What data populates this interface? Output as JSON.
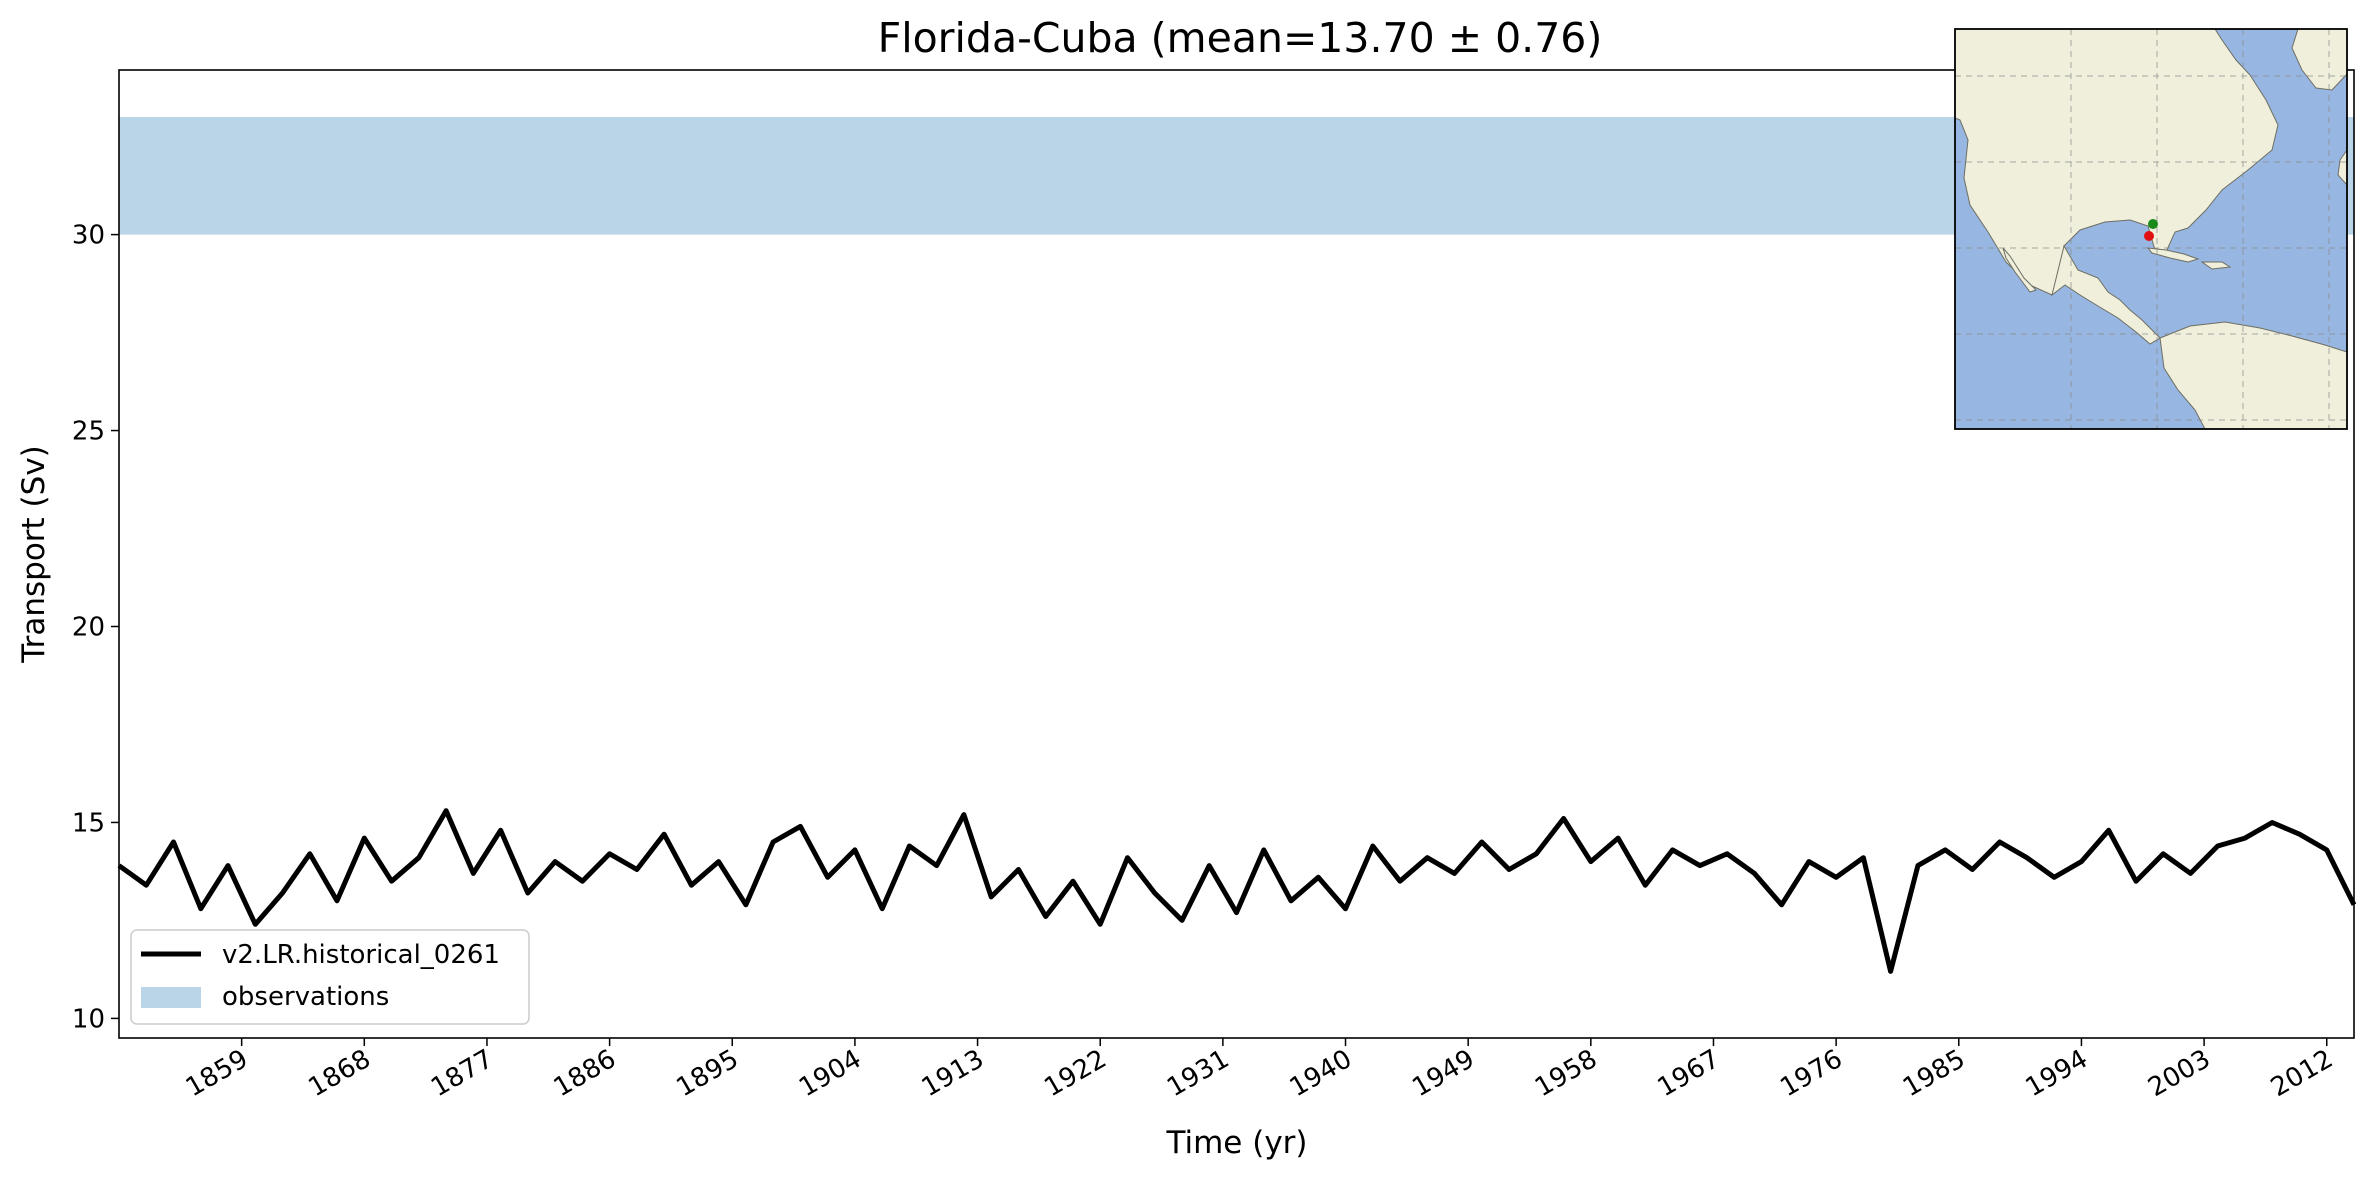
{
  "chart_data": {
    "type": "line",
    "title": "Florida-Cuba (mean=13.70 ± 0.76)",
    "xlabel": "Time (yr)",
    "ylabel": "Transport (Sv)",
    "xlim": [
      1850,
      2014
    ],
    "ylim": [
      9.5,
      34.2
    ],
    "x_ticks": [
      1859,
      1868,
      1877,
      1886,
      1895,
      1904,
      1913,
      1922,
      1931,
      1940,
      1949,
      1958,
      1967,
      1976,
      1985,
      1994,
      2003,
      2012
    ],
    "x_tick_labels": [
      "1859",
      "1868",
      "1877",
      "1886",
      "1895",
      "1904",
      "1913",
      "1922",
      "1931",
      "1940",
      "1949",
      "1958",
      "1967",
      "1976",
      "1985",
      "1994",
      "2003",
      "2012"
    ],
    "y_ticks": [
      10,
      15,
      20,
      25,
      30
    ],
    "y_tick_labels": [
      "10",
      "15",
      "20",
      "25",
      "30"
    ],
    "legend_position": "lower-left",
    "observations": {
      "name": "observations",
      "ymin": 30,
      "ymax": 33,
      "color": "#b9d5e7"
    },
    "series": [
      {
        "name": "v2.LR.historical_0261",
        "color": "#000000",
        "x": [
          1850,
          1852,
          1854,
          1856,
          1858,
          1860,
          1862,
          1864,
          1866,
          1868,
          1870,
          1872,
          1874,
          1876,
          1878,
          1880,
          1882,
          1884,
          1886,
          1888,
          1890,
          1892,
          1894,
          1896,
          1898,
          1900,
          1902,
          1904,
          1906,
          1908,
          1910,
          1912,
          1914,
          1916,
          1918,
          1920,
          1922,
          1924,
          1926,
          1928,
          1930,
          1932,
          1934,
          1936,
          1938,
          1940,
          1942,
          1944,
          1946,
          1948,
          1950,
          1952,
          1954,
          1956,
          1958,
          1960,
          1962,
          1964,
          1966,
          1968,
          1970,
          1972,
          1974,
          1976,
          1978,
          1980,
          1982,
          1984,
          1986,
          1988,
          1990,
          1992,
          1994,
          1996,
          1998,
          2000,
          2002,
          2004,
          2006,
          2008,
          2010,
          2012,
          2014
        ],
        "y": [
          13.9,
          13.4,
          14.5,
          12.8,
          13.9,
          12.4,
          13.2,
          14.2,
          13.0,
          14.6,
          13.5,
          14.1,
          15.3,
          13.7,
          14.8,
          13.2,
          14.0,
          13.5,
          14.2,
          13.8,
          14.7,
          13.4,
          14.0,
          12.9,
          14.5,
          14.9,
          13.6,
          14.3,
          12.8,
          14.4,
          13.9,
          15.2,
          13.1,
          13.8,
          12.6,
          13.5,
          12.4,
          14.1,
          13.2,
          12.5,
          13.9,
          12.7,
          14.3,
          13.0,
          13.6,
          12.8,
          14.4,
          13.5,
          14.1,
          13.7,
          14.5,
          13.8,
          14.2,
          15.1,
          14.0,
          14.6,
          13.4,
          14.3,
          13.9,
          14.2,
          13.7,
          12.9,
          14.0,
          13.6,
          14.1,
          11.2,
          13.9,
          14.3,
          13.8,
          14.5,
          14.1,
          13.6,
          14.0,
          14.8,
          13.5,
          14.2,
          13.7,
          14.4,
          14.6,
          15.0,
          14.7,
          14.3,
          12.9
        ]
      }
    ]
  },
  "inset_map": {
    "land_color": "#efefdc",
    "ocean_color": "#97b6e2",
    "markers": [
      {
        "name": "florida-point",
        "color": "#1a8a1a"
      },
      {
        "name": "cuba-point",
        "color": "#e01010"
      }
    ]
  }
}
